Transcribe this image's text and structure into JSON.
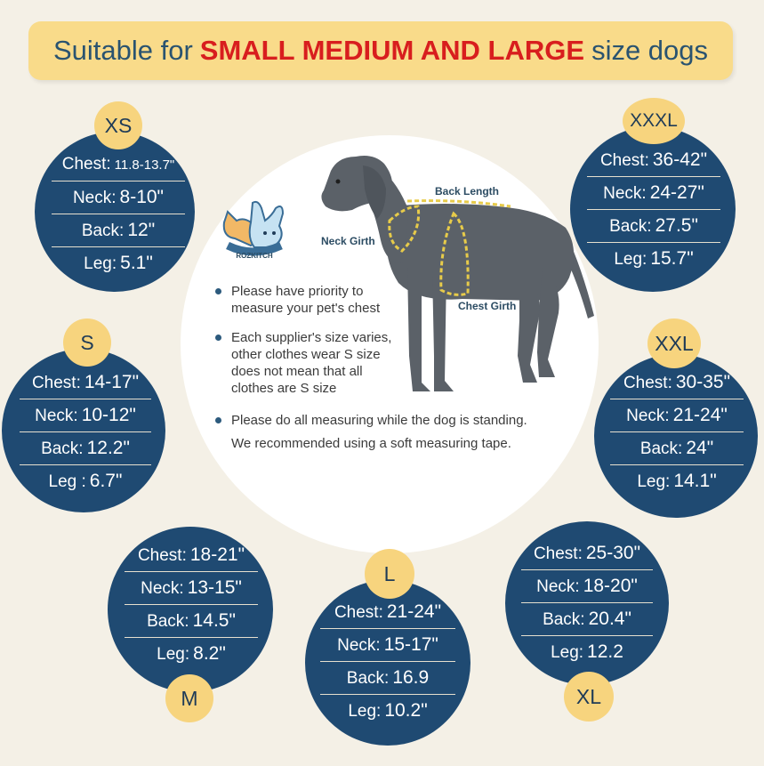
{
  "banner": {
    "prefix": "Suitable for",
    "highlight": "SMALL MEDIUM AND LARGE",
    "suffix": "size dogs"
  },
  "colors": {
    "background": "#f4f0e6",
    "banner": "#f9db8a",
    "circle": "#1f4a72",
    "tag": "#f7d47e",
    "highlight": "#d81e1e",
    "measure_line": "#e7cb4a"
  },
  "logo": {
    "text": "ROZKITCH"
  },
  "dog_labels": {
    "back_length": "Back Length",
    "neck_girth": "Neck Girth",
    "chest_girth": "Chest Girth"
  },
  "tips": [
    {
      "line1": "Please have priority to",
      "line2": "measure your pet's chest"
    },
    {
      "line1": "Each supplier's size varies,",
      "line2": "other clothes wear  S size",
      "line3": "does not mean that all",
      "line4": "clothes are S size"
    },
    {
      "line1": "Please do all measuring while the dog is standing.",
      "line2": "We recommended using a soft measuring tape."
    }
  ],
  "sizes": {
    "xs": {
      "tag": "XS",
      "chest_label": "Chest:",
      "chest": "11.8-13.7\"",
      "neck_label": "Neck:",
      "neck": "8-10\"",
      "back_label": "Back:",
      "back": "12\"",
      "leg_label": "Leg:",
      "leg": "5.1\""
    },
    "s": {
      "tag": "S",
      "chest_label": "Chest:",
      "chest": "14-17\"",
      "neck_label": "Neck:",
      "neck": "10-12\"",
      "back_label": "Back:",
      "back": "12.2\"",
      "leg_label": "Leg :",
      "leg": "6.7\""
    },
    "m": {
      "tag": "M",
      "chest_label": "Chest:",
      "chest": "18-21\"",
      "neck_label": "Neck:",
      "neck": "13-15\"",
      "back_label": "Back:",
      "back": "14.5\"",
      "leg_label": "Leg:",
      "leg": "8.2\""
    },
    "l": {
      "tag": "L",
      "chest_label": "Chest:",
      "chest": "21-24\"",
      "neck_label": "Neck:",
      "neck": "15-17\"",
      "back_label": "Back:",
      "back": "16.9",
      "leg_label": "Leg:",
      "leg": "10.2\""
    },
    "xl": {
      "tag": "XL",
      "chest_label": "Chest:",
      "chest": "25-30\"",
      "neck_label": "Neck:",
      "neck": "18-20\"",
      "back_label": "Back:",
      "back": "20.4\"",
      "leg_label": "Leg:",
      "leg": "12.2"
    },
    "xxl": {
      "tag": "XXL",
      "chest_label": "Chest:",
      "chest": "30-35\"",
      "neck_label": "Neck:",
      "neck": "21-24\"",
      "back_label": "Back:",
      "back": "24\"",
      "leg_label": "Leg:",
      "leg": "14.1\""
    },
    "xxxl": {
      "tag": "XXXL",
      "chest_label": "Chest:",
      "chest": "36-42\"",
      "neck_label": "Neck:",
      "neck": "24-27\"",
      "back_label": "Back:",
      "back": "27.5\"",
      "leg_label": "Leg:",
      "leg": "15.7\""
    }
  }
}
